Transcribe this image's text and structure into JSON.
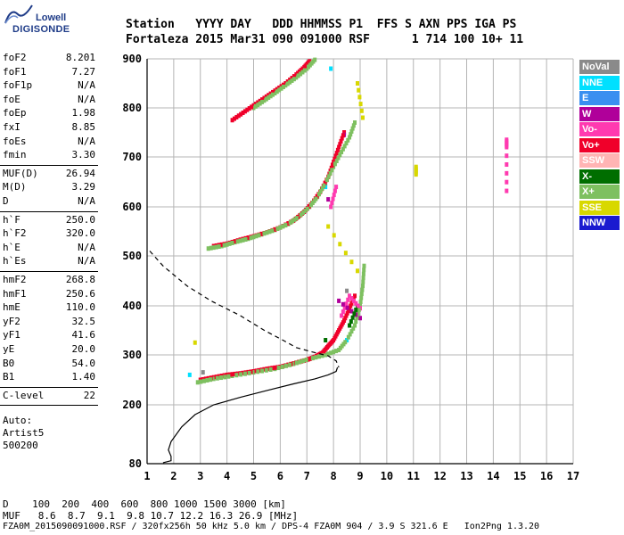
{
  "logo": {
    "line1": "Lowell",
    "line2": "DIGISONDE"
  },
  "header": {
    "row1": "Station   YYYY DAY   DDD HHMMSS P1  FFS S AXN PPS IGA PS",
    "row2": "Fortaleza 2015 Mar31 090 091000 RSF      1 714 100 10+ 11"
  },
  "params": {
    "group1": [
      {
        "label": "foF2",
        "value": "8.201"
      },
      {
        "label": "foF1",
        "value": "7.27"
      },
      {
        "label": "foF1p",
        "value": "N/A"
      },
      {
        "label": "foE",
        "value": "N/A"
      },
      {
        "label": "foEp",
        "value": "1.98"
      },
      {
        "label": "fxI",
        "value": "8.85"
      },
      {
        "label": "foEs",
        "value": "N/A"
      },
      {
        "label": "fmin",
        "value": "3.30"
      }
    ],
    "group2": [
      {
        "label": "MUF(D)",
        "value": "26.94"
      },
      {
        "label": "M(D)",
        "value": "3.29"
      },
      {
        "label": "D",
        "value": "N/A"
      }
    ],
    "group3": [
      {
        "label": "h`F",
        "value": "250.0"
      },
      {
        "label": "h`F2",
        "value": "320.0"
      },
      {
        "label": "h`E",
        "value": "N/A"
      },
      {
        "label": "h`Es",
        "value": "N/A"
      }
    ],
    "group4": [
      {
        "label": "hmF2",
        "value": "268.8"
      },
      {
        "label": "hmF1",
        "value": "250.6"
      },
      {
        "label": "hmE",
        "value": "110.0"
      },
      {
        "label": "yF2",
        "value": "32.5"
      },
      {
        "label": "yF1",
        "value": "41.6"
      },
      {
        "label": "yE",
        "value": "20.0"
      },
      {
        "label": "B0",
        "value": "54.0"
      },
      {
        "label": "B1",
        "value": "1.40"
      }
    ],
    "group5": [
      {
        "label": "C-level",
        "value": "22"
      }
    ],
    "auto": [
      "Auto:",
      "Artist5",
      "500200"
    ]
  },
  "legend": [
    {
      "label": "NoVal",
      "color": "#8a8a8a"
    },
    {
      "label": "NNE",
      "color": "#00e0ff"
    },
    {
      "label": "E",
      "color": "#3a8ff0"
    },
    {
      "label": "W",
      "color": "#b0009a"
    },
    {
      "label": "Vo-",
      "color": "#ff3ab0"
    },
    {
      "label": "Vo+",
      "color": "#f0002a"
    },
    {
      "label": "SSW",
      "color": "#ffb4b4"
    },
    {
      "label": "X-",
      "color": "#006e00"
    },
    {
      "label": "X+",
      "color": "#7ec060"
    },
    {
      "label": "SSE",
      "color": "#d8d800"
    },
    {
      "label": "NNW",
      "color": "#1a1ad0"
    }
  ],
  "footer": {
    "d_row": "D    100  200  400  600  800 1000 1500 3000 [km]",
    "muf_row": "MUF   8.6  8.7  9.1  9.8 10.7 12.2 16.3 26.9 [MHz]",
    "info": "FZA0M_2015090091000.RSF / 320fx256h 50 kHz 5.0 km / DPS-4 FZA0M 904 / 3.9 S 321.6 E   Ion2Png 1.3.20"
  },
  "chart_data": {
    "type": "scatter",
    "xlim": [
      1,
      17
    ],
    "ylim": [
      80,
      900
    ],
    "x_ticks": [
      "1",
      "2",
      "3",
      "4",
      "5",
      "6",
      "7",
      "8",
      "9",
      "10",
      "11",
      "12",
      "13",
      "14",
      "15",
      "16",
      "17"
    ],
    "y_ticks": [
      "80",
      "200",
      "300",
      "400",
      "500",
      "600",
      "700",
      "800",
      "900"
    ],
    "grid": true,
    "legend_position": "right",
    "profile_solid": [
      [
        1.6,
        82
      ],
      [
        1.9,
        86
      ],
      [
        1.9,
        95
      ],
      [
        1.8,
        108
      ],
      [
        1.9,
        125
      ],
      [
        2.3,
        155
      ],
      [
        2.8,
        180
      ],
      [
        3.5,
        200
      ],
      [
        4.5,
        215
      ],
      [
        5.6,
        230
      ],
      [
        6.5,
        242
      ],
      [
        7.3,
        252
      ],
      [
        7.8,
        260
      ],
      [
        8.1,
        267
      ],
      [
        8.15,
        275
      ]
    ],
    "profile_dashed": [
      [
        1.1,
        510
      ],
      [
        1.6,
        480
      ],
      [
        2.5,
        440
      ],
      [
        3.4,
        410
      ],
      [
        4.5,
        380
      ],
      [
        5.4,
        350
      ],
      [
        6.1,
        330
      ],
      [
        6.6,
        315
      ],
      [
        7.2,
        306
      ],
      [
        7.8,
        298
      ],
      [
        8.1,
        288
      ],
      [
        8.2,
        275
      ]
    ],
    "traces": [
      {
        "name": "F-low-Vo+",
        "color": "#f0002a",
        "points": [
          [
            3.0,
            250
          ],
          [
            3.5,
            255
          ],
          [
            4.0,
            260
          ],
          [
            4.5,
            263
          ],
          [
            5.0,
            267
          ],
          [
            5.5,
            272
          ],
          [
            6.0,
            276
          ],
          [
            6.5,
            283
          ],
          [
            7.0,
            290
          ],
          [
            7.3,
            296
          ],
          [
            7.6,
            305
          ],
          [
            7.8,
            318
          ],
          [
            8.0,
            330
          ],
          [
            8.2,
            350
          ],
          [
            8.4,
            370
          ],
          [
            8.6,
            395
          ],
          [
            8.8,
            420
          ]
        ]
      },
      {
        "name": "F-low-X+",
        "color": "#7ec060",
        "points": [
          [
            2.9,
            245
          ],
          [
            3.5,
            252
          ],
          [
            4.2,
            258
          ],
          [
            5.0,
            265
          ],
          [
            5.8,
            272
          ],
          [
            6.5,
            282
          ],
          [
            7.1,
            292
          ],
          [
            7.7,
            300
          ],
          [
            8.2,
            310
          ],
          [
            8.5,
            330
          ],
          [
            8.8,
            360
          ],
          [
            9.0,
            400
          ],
          [
            9.1,
            440
          ],
          [
            9.15,
            480
          ]
        ]
      },
      {
        "name": "F-mid-Vo+",
        "color": "#f0002a",
        "points": [
          [
            3.5,
            520
          ],
          [
            4.0,
            525
          ],
          [
            4.5,
            533
          ],
          [
            5.0,
            540
          ],
          [
            5.5,
            548
          ],
          [
            6.0,
            558
          ],
          [
            6.5,
            572
          ],
          [
            6.9,
            590
          ],
          [
            7.2,
            608
          ],
          [
            7.5,
            630
          ],
          [
            7.8,
            660
          ],
          [
            8.0,
            690
          ],
          [
            8.2,
            720
          ],
          [
            8.4,
            750
          ]
        ]
      },
      {
        "name": "F-mid-X+",
        "color": "#7ec060",
        "points": [
          [
            3.3,
            515
          ],
          [
            3.8,
            520
          ],
          [
            4.3,
            528
          ],
          [
            4.8,
            535
          ],
          [
            5.3,
            544
          ],
          [
            5.8,
            553
          ],
          [
            6.3,
            565
          ],
          [
            6.7,
            580
          ],
          [
            7.1,
            600
          ],
          [
            7.4,
            620
          ],
          [
            7.7,
            648
          ],
          [
            8.0,
            680
          ],
          [
            8.3,
            710
          ],
          [
            8.6,
            740
          ],
          [
            8.8,
            770
          ]
        ]
      },
      {
        "name": "F-high-Vo+",
        "color": "#f0002a",
        "points": [
          [
            4.2,
            775
          ],
          [
            4.6,
            790
          ],
          [
            5.0,
            805
          ],
          [
            5.4,
            820
          ],
          [
            5.8,
            835
          ],
          [
            6.2,
            850
          ],
          [
            6.6,
            868
          ],
          [
            6.9,
            883
          ],
          [
            7.1,
            895
          ]
        ]
      },
      {
        "name": "F-high-X+",
        "color": "#7ec060",
        "points": [
          [
            5.0,
            800
          ],
          [
            5.4,
            815
          ],
          [
            5.8,
            830
          ],
          [
            6.2,
            846
          ],
          [
            6.6,
            862
          ],
          [
            7.0,
            880
          ],
          [
            7.3,
            898
          ]
        ]
      },
      {
        "name": "Vo-",
        "color": "#ff3ab0",
        "points": [
          [
            7.9,
            600
          ],
          [
            8.1,
            640
          ],
          [
            8.3,
            380
          ],
          [
            8.6,
            420
          ],
          [
            9.0,
            395
          ],
          [
            8.9,
            850
          ],
          [
            14.5,
            735
          ],
          [
            14.5,
            720
          ],
          [
            14.5,
            632
          ]
        ]
      },
      {
        "name": "SSE",
        "color": "#d8d800",
        "points": [
          [
            2.8,
            325
          ],
          [
            11.1,
            680
          ],
          [
            11.1,
            665
          ],
          [
            8.9,
            850
          ],
          [
            9.1,
            780
          ],
          [
            7.8,
            560
          ],
          [
            8.9,
            470
          ]
        ]
      },
      {
        "name": "NNE",
        "color": "#00e0ff",
        "points": [
          [
            7.9,
            880
          ],
          [
            7.7,
            640
          ],
          [
            8.5,
            330
          ],
          [
            2.6,
            260
          ]
        ]
      },
      {
        "name": "W",
        "color": "#b0009a",
        "points": [
          [
            7.8,
            615
          ],
          [
            8.2,
            410
          ],
          [
            9.0,
            375
          ],
          [
            8.4,
            745
          ]
        ]
      },
      {
        "name": "X-",
        "color": "#006e00",
        "points": [
          [
            8.6,
            360
          ],
          [
            8.9,
            400
          ],
          [
            7.7,
            330
          ]
        ]
      },
      {
        "name": "NoVal",
        "color": "#8a8a8a",
        "points": [
          [
            3.1,
            265
          ],
          [
            8.5,
            430
          ]
        ]
      }
    ]
  }
}
